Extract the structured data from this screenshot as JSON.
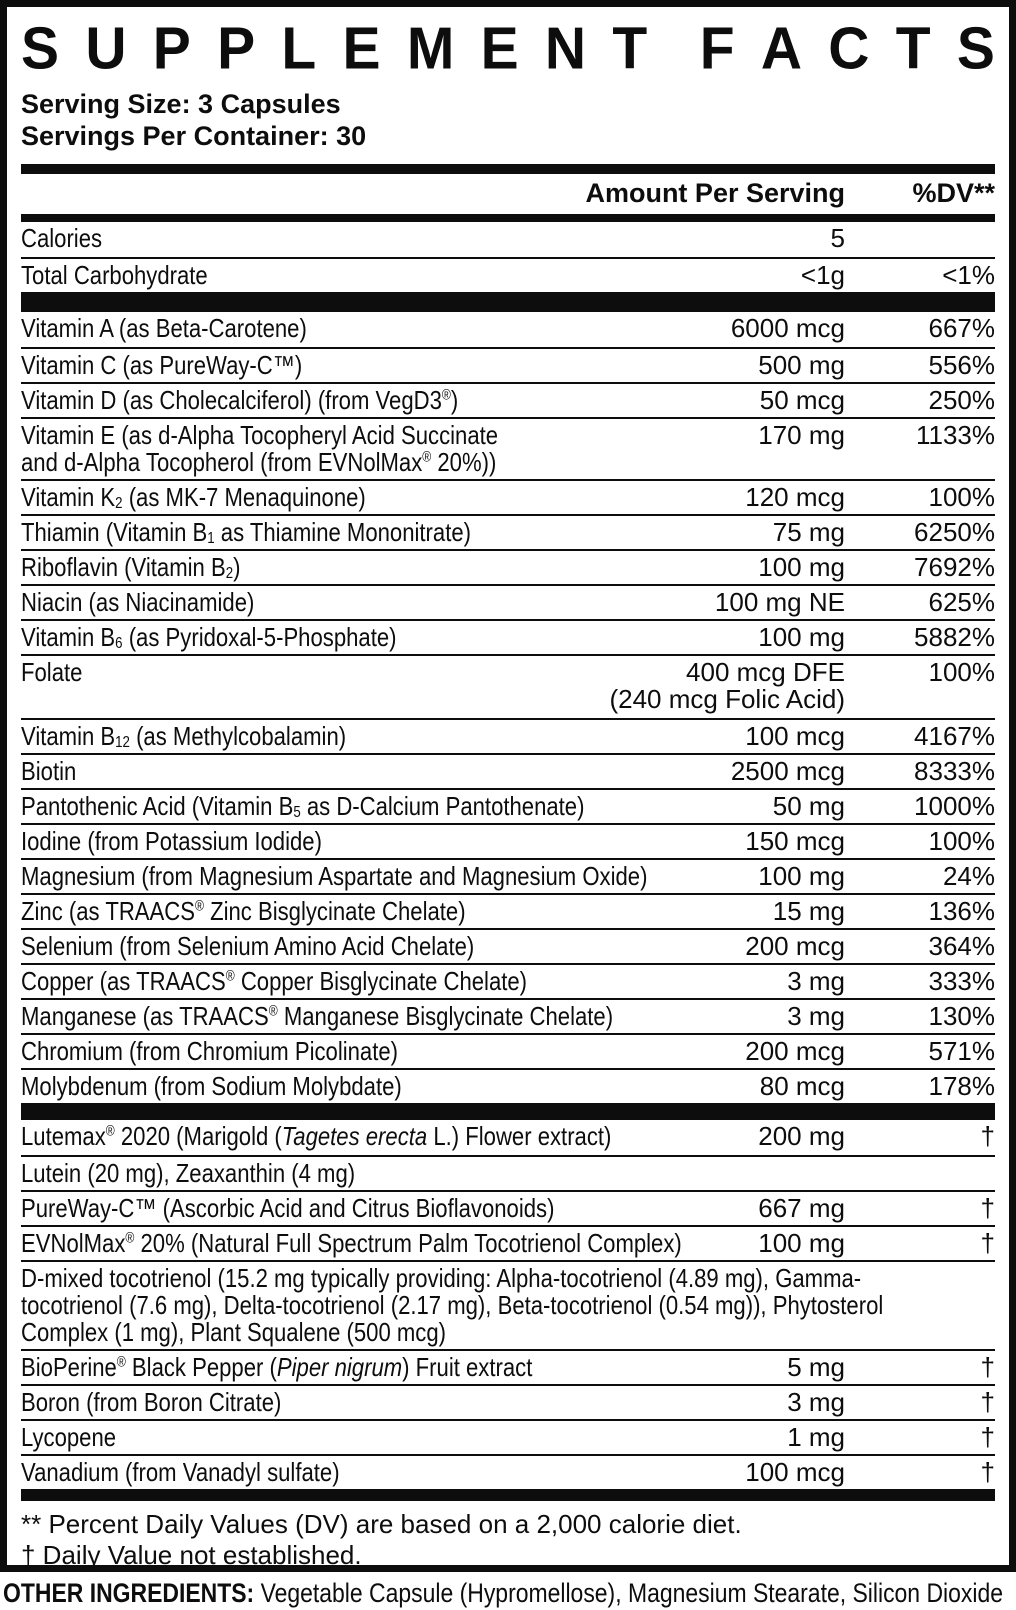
{
  "label": {
    "title": "SUPPLEMENT FACTS",
    "serving_size": "Serving Size: 3 Capsules",
    "servings_per_container": "Servings Per Container: 30",
    "columns": {
      "amount": "Amount Per Serving",
      "dv": "%DV**"
    },
    "colors": {
      "ink": "#0d0d0d",
      "paper": "#ffffff"
    },
    "macro_rows": [
      {
        "name": "Calories",
        "amount": "5",
        "dv": ""
      },
      {
        "name": "Total Carbohydrate",
        "amount": "&lt;1g",
        "dv": "&lt;1%"
      }
    ],
    "vitamin_rows": [
      {
        "name": "Vitamin A (as Beta-Carotene)",
        "amount": "6000 mcg",
        "dv": "667%"
      },
      {
        "name": "Vitamin C (as PureWay-C™)",
        "amount": "500 mg",
        "dv": "556%"
      },
      {
        "name": "Vitamin D (as Cholecalciferol) (from VegD3<sup>®</sup>)",
        "amount": "50 mcg",
        "dv": "250%"
      },
      {
        "name": "Vitamin E (as d-Alpha Tocopheryl Acid Succinate<br>and d-Alpha Tocopherol (from EVNolMax<sup>®</sup> 20%))",
        "amount": "170 mg",
        "dv": "1133%"
      },
      {
        "name": "Vitamin K<sub>2</sub> (as MK-7 Menaquinone)",
        "amount": "120 mcg",
        "dv": "100%"
      },
      {
        "name": "Thiamin (Vitamin B<sub>1</sub> as Thiamine Mononitrate)",
        "amount": "75 mg",
        "dv": "6250%"
      },
      {
        "name": "Riboflavin (Vitamin B<sub>2</sub>)",
        "amount": "100 mg",
        "dv": "7692%"
      },
      {
        "name": "Niacin (as Niacinamide)",
        "amount": "100 mg NE",
        "dv": "625%"
      },
      {
        "name": "Vitamin B<sub>6</sub> (as Pyridoxal-5-Phosphate)",
        "amount": "100 mg",
        "dv": "5882%"
      },
      {
        "name": "Folate",
        "amount": "400 mcg DFE<br>(240 mcg Folic Acid)",
        "dv": "100%",
        "min_h": 64
      },
      {
        "name": "Vitamin B<sub>12</sub> (as Methylcobalamin)",
        "amount": "100 mcg",
        "dv": "4167%"
      },
      {
        "name": "Biotin",
        "amount": "2500 mcg",
        "dv": "8333%"
      },
      {
        "name": "Pantothenic Acid (Vitamin B<sub>5</sub> as D-Calcium Pantothenate)",
        "amount": "50 mg",
        "dv": "1000%"
      },
      {
        "name": "Iodine (from Potassium Iodide)",
        "amount": "150 mcg",
        "dv": "100%"
      },
      {
        "name": "Magnesium (from Magnesium Aspartate and Magnesium Oxide)",
        "amount": "100 mg",
        "dv": "24%"
      },
      {
        "name": "Zinc (as TRAACS<sup>®</sup> Zinc Bisglycinate Chelate)",
        "amount": "15 mg",
        "dv": "136%"
      },
      {
        "name": "Selenium (from Selenium Amino Acid Chelate)",
        "amount": "200 mcg",
        "dv": "364%"
      },
      {
        "name": "Copper (as TRAACS<sup>®</sup> Copper Bisglycinate Chelate)",
        "amount": "3 mg",
        "dv": "333%"
      },
      {
        "name": "Manganese (as TRAACS<sup>®</sup> Manganese Bisglycinate Chelate)",
        "amount": "3 mg",
        "dv": "130%"
      },
      {
        "name": "Chromium (from Chromium Picolinate)",
        "amount": "200 mcg",
        "dv": "571%"
      },
      {
        "name": "Molybdenum (from Sodium Molybdate)",
        "amount": "80 mcg",
        "dv": "178%"
      }
    ],
    "botanical_rows": [
      {
        "name": "Lutemax<sup>®</sup> 2020 (Marigold (<i>Tagetes erecta</i> L.) Flower extract)",
        "amount": "200 mg",
        "dv": "†"
      },
      {
        "name": "Lutein (20 mg), Zeaxanthin (4 mg)",
        "sub": true
      },
      {
        "name": "PureWay-C™ (Ascorbic Acid and Citrus Bioflavonoids)",
        "amount": "667 mg",
        "dv": "†"
      },
      {
        "name": "EVNolMax<sup>®</sup> 20% (Natural Full Spectrum Palm Tocotrienol Complex)",
        "amount": "100 mg",
        "dv": "†"
      },
      {
        "name": "D-mixed tocotrienol (15.2 mg typically providing: Alpha-tocotrienol (4.89 mg), Gamma-tocotrienol (7.6 mg), Delta-tocotrienol (2.17 mg), Beta-tocotrienol (0.54 mg)), Phytosterol Complex (1 mg), Plant Squalene (500 mcg)",
        "sub": true
      },
      {
        "name": "BioPerine<sup>®</sup> Black Pepper (<i>Piper nigrum</i>) Fruit extract",
        "amount": "5 mg",
        "dv": "†"
      },
      {
        "name": "Boron (from Boron Citrate)",
        "amount": "3 mg",
        "dv": "†"
      },
      {
        "name": "Lycopene",
        "amount": "1 mg",
        "dv": "†"
      },
      {
        "name": "Vanadium (from Vanadyl sulfate)",
        "amount": "100 mcg",
        "dv": "†"
      }
    ],
    "footnotes": [
      "** Percent Daily Values (DV) are based on a 2,000 calorie diet.",
      "† Daily Value not established."
    ],
    "other_ingredients": {
      "label": "OTHER INGREDIENTS:",
      "text": " Vegetable Capsule (Hypromellose), Magnesium Stearate, Silicon Dioxide"
    }
  }
}
